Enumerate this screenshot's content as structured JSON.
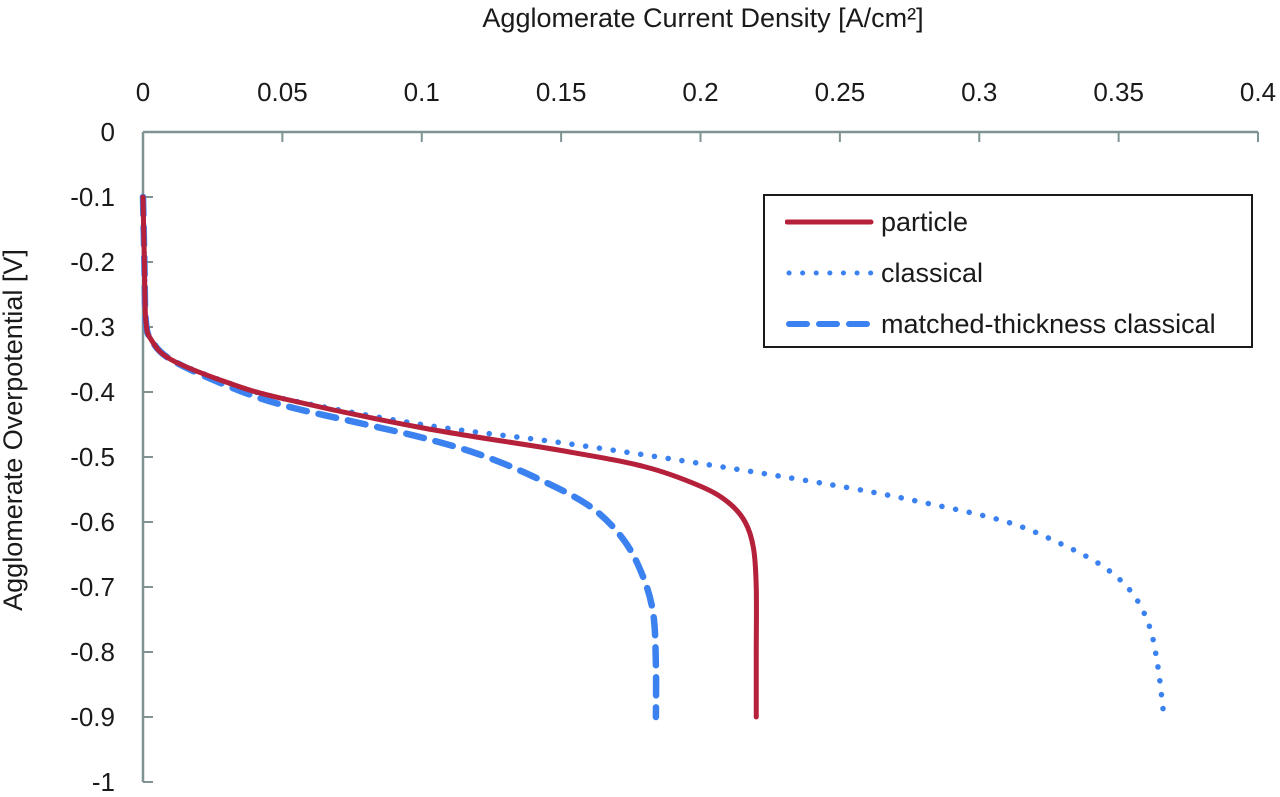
{
  "chart_data": {
    "type": "line",
    "title": "",
    "xlabel": "Agglomerate Current Density [A/cm²]",
    "ylabel": "Agglomerate Overpotential [V]",
    "xlim": [
      0,
      0.4
    ],
    "ylim": [
      -1,
      0
    ],
    "x_axis_position": "top",
    "x_ticks": [
      "0",
      "0.05",
      "0.1",
      "0.15",
      "0.2",
      "0.25",
      "0.3",
      "0.35",
      "0.4"
    ],
    "y_ticks": [
      "0",
      "-0.1",
      "-0.2",
      "-0.3",
      "-0.4",
      "-0.5",
      "-0.6",
      "-0.7",
      "-0.8",
      "-0.9",
      "-1"
    ],
    "grid": false,
    "legend_position": "upper right (inside)",
    "series": [
      {
        "name": "particle",
        "color": "#b5203a",
        "style": "solid",
        "x": [
          0,
          0.0005,
          0.001,
          0.003,
          0.01,
          0.03,
          0.05,
          0.1,
          0.15,
          0.18,
          0.2,
          0.21,
          0.216,
          0.219,
          0.22,
          0.22,
          0.22
        ],
        "y": [
          -0.1,
          -0.2,
          -0.29,
          -0.32,
          -0.35,
          -0.385,
          -0.41,
          -0.455,
          -0.49,
          -0.515,
          -0.545,
          -0.57,
          -0.6,
          -0.64,
          -0.7,
          -0.8,
          -0.9
        ]
      },
      {
        "name": "classical",
        "color": "#3b82f0",
        "style": "dotted",
        "x": [
          0,
          0.0005,
          0.001,
          0.003,
          0.01,
          0.03,
          0.05,
          0.1,
          0.15,
          0.2,
          0.25,
          0.28,
          0.31,
          0.33,
          0.345,
          0.355,
          0.361,
          0.364,
          0.366
        ],
        "y": [
          -0.1,
          -0.2,
          -0.29,
          -0.32,
          -0.35,
          -0.385,
          -0.41,
          -0.45,
          -0.478,
          -0.51,
          -0.545,
          -0.57,
          -0.6,
          -0.635,
          -0.67,
          -0.71,
          -0.76,
          -0.82,
          -0.89
        ]
      },
      {
        "name": "matched-thickness classical",
        "color": "#3b82f0",
        "style": "dashed",
        "x": [
          0,
          0.0005,
          0.001,
          0.003,
          0.01,
          0.03,
          0.05,
          0.08,
          0.1,
          0.12,
          0.14,
          0.16,
          0.172,
          0.179,
          0.183,
          0.184,
          0.184
        ],
        "y": [
          -0.1,
          -0.2,
          -0.29,
          -0.32,
          -0.35,
          -0.39,
          -0.42,
          -0.45,
          -0.47,
          -0.495,
          -0.53,
          -0.575,
          -0.625,
          -0.68,
          -0.74,
          -0.82,
          -0.9
        ]
      }
    ]
  },
  "legend": {
    "items": [
      {
        "label": "particle"
      },
      {
        "label": "classical"
      },
      {
        "label": "matched-thickness classical"
      }
    ]
  }
}
